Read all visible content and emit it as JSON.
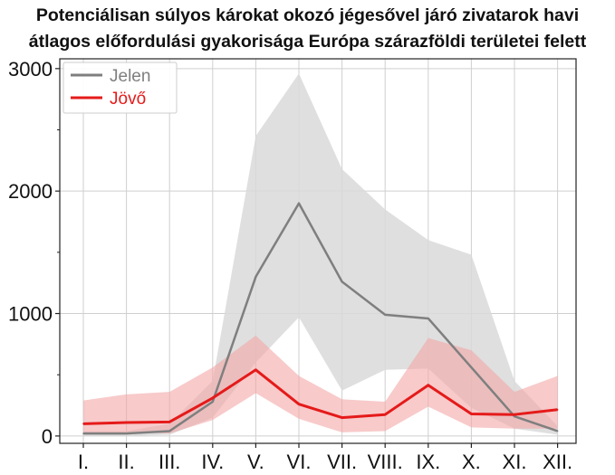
{
  "chart_data": {
    "type": "line",
    "title_lines": [
      "Potenciálisan súlyos károkat okozó jégesővel járó zivatarok havi",
      "átlagos előfordulási gyakorisága Európa szárazföldi területei felett"
    ],
    "categories": [
      "I.",
      "II.",
      "III.",
      "IV.",
      "V.",
      "VI.",
      "VII.",
      "VIII.",
      "IX.",
      "X.",
      "XI.",
      "XII."
    ],
    "ylim": [
      -60,
      3080
    ],
    "yticks": [
      0,
      1000,
      2000,
      3000
    ],
    "ytick_labels": [
      "0",
      "1000",
      "2000",
      "3000"
    ],
    "grid": true,
    "legend_position": "top-left",
    "series": [
      {
        "name": "Jelen",
        "color": "#7f7f7f",
        "band_color": "#d9d9d9",
        "values": [
          20,
          20,
          40,
          280,
          1300,
          1900,
          1260,
          990,
          960,
          560,
          160,
          40
        ],
        "lower": [
          0,
          0,
          10,
          150,
          600,
          970,
          370,
          540,
          550,
          230,
          60,
          10
        ],
        "upper": [
          40,
          40,
          100,
          450,
          2450,
          2960,
          2180,
          1850,
          1600,
          1480,
          450,
          80
        ]
      },
      {
        "name": "Jövő",
        "color": "#e51a1a",
        "band_color": "#f4a6a6",
        "values": [
          100,
          110,
          115,
          310,
          540,
          260,
          150,
          175,
          415,
          180,
          175,
          215
        ],
        "lower": [
          20,
          30,
          20,
          130,
          350,
          140,
          30,
          40,
          240,
          70,
          60,
          60
        ],
        "upper": [
          290,
          340,
          360,
          560,
          820,
          490,
          300,
          280,
          800,
          700,
          360,
          490
        ]
      }
    ]
  }
}
